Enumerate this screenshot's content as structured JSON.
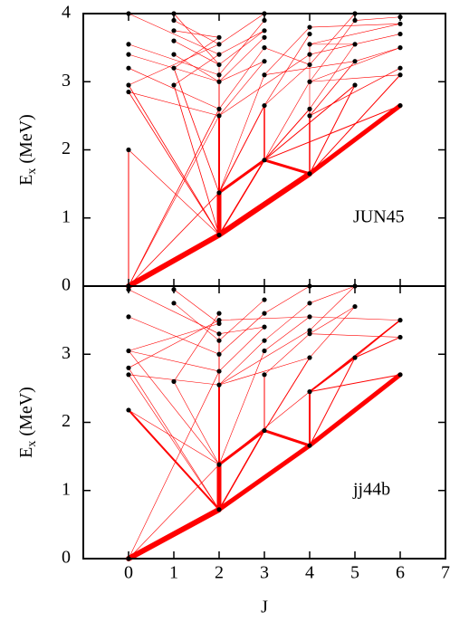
{
  "chart_data": [
    {
      "type": "level-scheme",
      "label": "JUN45",
      "ylabel": {
        "main": "E",
        "sub": "x",
        "unit": "(MeV)"
      },
      "xlim": [
        -1,
        7
      ],
      "ylim": [
        0,
        4
      ],
      "yticks": [
        0,
        1,
        2,
        3,
        4
      ],
      "line_color": "#ff0000",
      "level_color": "#000000",
      "levels": {
        "J": [
          0,
          0,
          0,
          0,
          0,
          0,
          0,
          0,
          1,
          1,
          1,
          1,
          1,
          1,
          1,
          2,
          2,
          2,
          2,
          2,
          2,
          2,
          2,
          2,
          2,
          3,
          3,
          3,
          3,
          3,
          3,
          3,
          3,
          3,
          4,
          4,
          4,
          4,
          4,
          4,
          4,
          4,
          4,
          5,
          5,
          5,
          5,
          5,
          6,
          6,
          6,
          6,
          6,
          6,
          6
        ],
        "E": [
          0,
          2.0,
          2.85,
          2.95,
          3.2,
          3.4,
          3.55,
          4.0,
          2.95,
          3.2,
          3.4,
          3.6,
          3.75,
          3.9,
          4.0,
          0.75,
          1.37,
          2.5,
          2.6,
          3.0,
          3.1,
          3.25,
          3.4,
          3.55,
          3.65,
          1.85,
          2.65,
          3.1,
          3.3,
          3.5,
          3.65,
          3.75,
          3.9,
          4.0,
          1.65,
          2.5,
          2.6,
          3.0,
          3.25,
          3.4,
          3.55,
          3.7,
          3.8,
          2.95,
          3.3,
          3.55,
          3.9,
          4.0,
          2.65,
          3.1,
          3.2,
          3.5,
          3.7,
          3.85,
          3.95
        ]
      },
      "transitions": [
        [
          15,
          0,
          6
        ],
        [
          34,
          15,
          6
        ],
        [
          48,
          34,
          5
        ],
        [
          16,
          15,
          5
        ],
        [
          25,
          16,
          3
        ],
        [
          25,
          34,
          3
        ],
        [
          25,
          15,
          1.5
        ],
        [
          17,
          16,
          2
        ],
        [
          17,
          15,
          1
        ],
        [
          18,
          16,
          1
        ],
        [
          26,
          25,
          1.5
        ],
        [
          26,
          16,
          1
        ],
        [
          35,
          34,
          1.5
        ],
        [
          36,
          34,
          1
        ],
        [
          36,
          25,
          1
        ],
        [
          43,
          34,
          1
        ],
        [
          43,
          25,
          1
        ],
        [
          49,
          34,
          1
        ],
        [
          48,
          25,
          1
        ],
        [
          1,
          0,
          1
        ],
        [
          2,
          15,
          0.8
        ],
        [
          3,
          15,
          0.8
        ],
        [
          8,
          15,
          0.8
        ],
        [
          9,
          16,
          0.8
        ],
        [
          16,
          0,
          0.8
        ],
        [
          18,
          0,
          0.8
        ],
        [
          17,
          0,
          0.6
        ],
        [
          19,
          15,
          0.6
        ],
        [
          20,
          16,
          0.6
        ],
        [
          21,
          15,
          0.6
        ],
        [
          27,
          16,
          0.6
        ],
        [
          28,
          17,
          0.6
        ],
        [
          29,
          18,
          0.6
        ],
        [
          37,
          25,
          0.6
        ],
        [
          38,
          26,
          0.6
        ],
        [
          39,
          17,
          0.6
        ],
        [
          40,
          34,
          0.6
        ],
        [
          44,
          35,
          0.8
        ],
        [
          45,
          36,
          0.6
        ],
        [
          50,
          35,
          0.8
        ],
        [
          51,
          37,
          0.6
        ],
        [
          52,
          39,
          0.6
        ],
        [
          53,
          42,
          0.6
        ],
        [
          54,
          46,
          0.6
        ],
        [
          2,
          17,
          0.6
        ],
        [
          4,
          18,
          0.6
        ],
        [
          5,
          19,
          0.6
        ],
        [
          6,
          20,
          0.6
        ],
        [
          7,
          22,
          0.6
        ],
        [
          10,
          19,
          0.6
        ],
        [
          11,
          21,
          0.6
        ],
        [
          12,
          24,
          0.6
        ],
        [
          13,
          23,
          0.6
        ],
        [
          14,
          21,
          0.6
        ],
        [
          30,
          19,
          0.6
        ],
        [
          31,
          22,
          0.6
        ],
        [
          32,
          20,
          0.6
        ],
        [
          33,
          23,
          0.6
        ],
        [
          41,
          26,
          0.6
        ],
        [
          42,
          27,
          0.6
        ],
        [
          46,
          37,
          0.6
        ],
        [
          47,
          38,
          0.6
        ],
        [
          44,
          27,
          0.6
        ],
        [
          49,
          37,
          0.6
        ],
        [
          53,
          40,
          0.6
        ],
        [
          24,
          9,
          0.6
        ],
        [
          22,
          8,
          0.6
        ],
        [
          23,
          3,
          0.6
        ],
        [
          31,
          21,
          0.6
        ],
        [
          28,
          19,
          0.6
        ],
        [
          38,
          29,
          0.6
        ],
        [
          45,
          40,
          0.6
        ],
        [
          51,
          44,
          0.6
        ],
        [
          1,
          15,
          0.6
        ]
      ]
    },
    {
      "type": "level-scheme",
      "label": "jj44b",
      "ylabel": {
        "main": "E",
        "sub": "x",
        "unit": "(MeV)"
      },
      "xlabel": "J",
      "xlim": [
        -1,
        7
      ],
      "xticks": [
        0,
        1,
        2,
        3,
        4,
        5,
        6,
        7
      ],
      "ylim": [
        0,
        4
      ],
      "yticks": [
        0,
        1,
        2,
        3
      ],
      "line_color": "#ff0000",
      "level_color": "#000000",
      "levels": {
        "J": [
          0,
          0,
          0,
          0,
          0,
          0,
          0,
          1,
          1,
          1,
          2,
          2,
          2,
          2,
          2,
          2,
          2,
          2,
          2,
          2,
          3,
          3,
          3,
          3,
          3,
          3,
          3,
          4,
          4,
          4,
          4,
          4,
          4,
          4,
          4,
          5,
          5,
          5,
          6,
          6,
          6
        ],
        "E": [
          0,
          2.18,
          2.7,
          2.8,
          3.05,
          3.55,
          3.95,
          2.6,
          3.75,
          3.95,
          0.72,
          1.38,
          2.55,
          2.75,
          3.0,
          3.2,
          3.3,
          3.45,
          3.5,
          3.6,
          1.88,
          2.7,
          3.05,
          3.2,
          3.4,
          3.6,
          3.8,
          1.66,
          2.45,
          2.95,
          3.3,
          3.35,
          3.55,
          3.75,
          4.0,
          2.95,
          3.7,
          4.0,
          2.7,
          3.25,
          3.5
        ]
      },
      "transitions": [
        [
          10,
          0,
          6
        ],
        [
          27,
          10,
          5
        ],
        [
          38,
          27,
          5
        ],
        [
          11,
          10,
          5
        ],
        [
          20,
          11,
          3
        ],
        [
          20,
          27,
          3
        ],
        [
          20,
          10,
          1.5
        ],
        [
          1,
          10,
          2
        ],
        [
          12,
          11,
          2
        ],
        [
          28,
          27,
          2
        ],
        [
          29,
          20,
          1
        ],
        [
          12,
          10,
          1
        ],
        [
          21,
          20,
          1
        ],
        [
          35,
          28,
          2
        ],
        [
          35,
          27,
          1
        ],
        [
          40,
          28,
          1.5
        ],
        [
          38,
          28,
          1
        ],
        [
          39,
          35,
          1
        ],
        [
          2,
          10,
          0.6
        ],
        [
          3,
          10,
          0.6
        ],
        [
          4,
          11,
          0.6
        ],
        [
          7,
          11,
          0.6
        ],
        [
          11,
          0,
          0.6
        ],
        [
          13,
          0,
          0.6
        ],
        [
          14,
          10,
          0.6
        ],
        [
          15,
          11,
          0.6
        ],
        [
          16,
          10,
          0.6
        ],
        [
          22,
          11,
          0.6
        ],
        [
          23,
          12,
          0.6
        ],
        [
          24,
          13,
          0.6
        ],
        [
          29,
          12,
          0.6
        ],
        [
          30,
          21,
          0.6
        ],
        [
          31,
          12,
          0.6
        ],
        [
          32,
          22,
          0.6
        ],
        [
          33,
          23,
          0.6
        ],
        [
          34,
          25,
          0.6
        ],
        [
          36,
          29,
          0.6
        ],
        [
          37,
          31,
          0.6
        ],
        [
          39,
          30,
          0.6
        ],
        [
          40,
          32,
          0.6
        ],
        [
          2,
          12,
          0.6
        ],
        [
          4,
          13,
          0.6
        ],
        [
          5,
          14,
          0.6
        ],
        [
          6,
          16,
          0.6
        ],
        [
          8,
          15,
          0.6
        ],
        [
          9,
          17,
          0.6
        ],
        [
          17,
          4,
          0.6
        ],
        [
          18,
          3,
          0.6
        ],
        [
          19,
          7,
          0.6
        ],
        [
          25,
          14,
          0.6
        ],
        [
          26,
          15,
          0.6
        ],
        [
          24,
          16,
          0.6
        ],
        [
          36,
          30,
          0.6
        ],
        [
          37,
          33,
          0.6
        ],
        [
          40,
          35,
          0.6
        ],
        [
          32,
          18,
          0.6
        ],
        [
          28,
          11,
          0.6
        ],
        [
          1,
          11,
          0.6
        ]
      ]
    }
  ]
}
